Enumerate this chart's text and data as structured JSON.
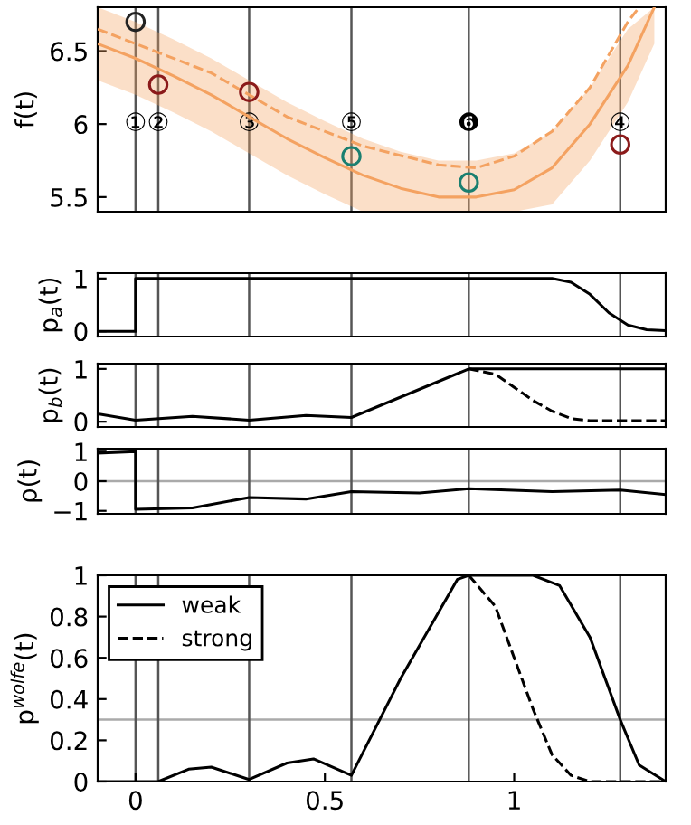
{
  "chart_data": [
    {
      "type": "line",
      "ylabel": "f(t)",
      "xlim": [
        -0.1,
        1.4
      ],
      "ylim": [
        5.4,
        6.8
      ],
      "yticks": [
        5.5,
        6,
        6.5
      ],
      "tick_labels": "y",
      "grid": false,
      "series": [
        {
          "color": "#f4a261",
          "line_style": "solid",
          "x": [
            -0.1,
            0,
            0.1,
            0.2,
            0.3,
            0.4,
            0.5,
            0.6,
            0.7,
            0.8,
            0.9,
            1.0,
            1.1,
            1.2,
            1.3,
            1.37
          ],
          "values": [
            6.55,
            6.45,
            6.33,
            6.2,
            6.05,
            5.9,
            5.77,
            5.65,
            5.56,
            5.5,
            5.5,
            5.55,
            5.7,
            6.0,
            6.4,
            6.8
          ],
          "lower": [
            6.3,
            6.2,
            6.08,
            5.95,
            5.8,
            5.65,
            5.52,
            5.4,
            5.4,
            5.4,
            5.4,
            5.4,
            5.45,
            5.75,
            6.15,
            6.55
          ],
          "upper": [
            6.8,
            6.7,
            6.58,
            6.45,
            6.3,
            6.15,
            6.02,
            5.9,
            5.81,
            5.75,
            5.75,
            5.8,
            5.95,
            6.25,
            6.65,
            6.8
          ]
        },
        {
          "color": "#f4a261",
          "line_style": "dashed",
          "x": [
            -0.1,
            0,
            0.2,
            0.4,
            0.6,
            0.8,
            0.9,
            1.0,
            1.1,
            1.2,
            1.3,
            1.33
          ],
          "values": [
            6.65,
            6.55,
            6.35,
            6.05,
            5.85,
            5.72,
            5.7,
            5.78,
            5.95,
            6.25,
            6.7,
            6.8
          ]
        },
        {
          "type": "scatter",
          "marker": "circle",
          "color": "#222222",
          "x": [
            0
          ],
          "values": [
            6.7
          ]
        },
        {
          "type": "scatter",
          "marker": "circle",
          "color": "#8b1a1a",
          "x": [
            0.06,
            0.3,
            1.28
          ],
          "values": [
            6.27,
            6.22,
            5.86
          ]
        },
        {
          "type": "scatter",
          "marker": "circle",
          "color": "#1a7f70",
          "x": [
            0.57,
            0.88
          ],
          "values": [
            5.78,
            5.6
          ]
        }
      ],
      "ref_lines": [
        {
          "axis": "x",
          "value": 0
        },
        {
          "axis": "x",
          "value": 0.06
        },
        {
          "axis": "x",
          "value": 0.3
        },
        {
          "axis": "x",
          "value": 0.57
        },
        {
          "axis": "x",
          "value": 0.88
        },
        {
          "axis": "x",
          "value": 1.28
        }
      ],
      "annotations": [
        {
          "text": "①",
          "x": 0,
          "y": 6
        },
        {
          "text": "②",
          "x": 0.06,
          "y": 6
        },
        {
          "text": "③",
          "x": 0.3,
          "y": 6
        },
        {
          "text": "⑤",
          "x": 0.57,
          "y": 6
        },
        {
          "text": "❻",
          "x": 0.88,
          "y": 6
        },
        {
          "text": "④",
          "x": 1.28,
          "y": 6
        }
      ]
    },
    {
      "type": "line",
      "ylabel": "p$_{a}$(t)",
      "xlim": [
        -0.1,
        1.4
      ],
      "ylim": [
        -0.1,
        1.1
      ],
      "yticks": [
        0,
        1
      ],
      "tick_labels": "y",
      "grid": false,
      "series": [
        {
          "color": "#000000",
          "line_style": "solid",
          "x": [
            -0.1,
            0,
            0,
            1.1,
            1.15,
            1.2,
            1.25,
            1.3,
            1.35,
            1.4
          ],
          "values": [
            0,
            0,
            1,
            1,
            0.93,
            0.7,
            0.35,
            0.12,
            0.03,
            0.01
          ]
        }
      ],
      "ref_lines": [
        {
          "axis": "x",
          "value": 0
        },
        {
          "axis": "x",
          "value": 0.06
        },
        {
          "axis": "x",
          "value": 0.3
        },
        {
          "axis": "x",
          "value": 0.57
        },
        {
          "axis": "x",
          "value": 0.88
        },
        {
          "axis": "x",
          "value": 1.28
        }
      ]
    },
    {
      "type": "line",
      "ylabel": "p$_{b}$(t)",
      "xlim": [
        -0.1,
        1.4
      ],
      "ylim": [
        -0.1,
        1.1
      ],
      "yticks": [
        0,
        1
      ],
      "tick_labels": "y",
      "grid": false,
      "series": [
        {
          "color": "#000000",
          "line_style": "solid",
          "x": [
            -0.1,
            0,
            0.15,
            0.3,
            0.45,
            0.57,
            0.88,
            1.4
          ],
          "values": [
            0.15,
            0.03,
            0.1,
            0.03,
            0.12,
            0.08,
            1,
            1
          ]
        },
        {
          "color": "#000000",
          "line_style": "dashed",
          "x": [
            0.88,
            0.95,
            1.0,
            1.05,
            1.1,
            1.15,
            1.2,
            1.4
          ],
          "values": [
            1,
            0.9,
            0.65,
            0.4,
            0.2,
            0.06,
            0.02,
            0.02
          ]
        }
      ],
      "ref_lines": [
        {
          "axis": "x",
          "value": 0
        },
        {
          "axis": "x",
          "value": 0.06
        },
        {
          "axis": "x",
          "value": 0.3
        },
        {
          "axis": "x",
          "value": 0.57
        },
        {
          "axis": "x",
          "value": 0.88
        },
        {
          "axis": "x",
          "value": 1.28
        }
      ]
    },
    {
      "type": "line",
      "ylabel": "ρ(t)",
      "xlim": [
        -0.1,
        1.4
      ],
      "ylim": [
        -1.1,
        1.1
      ],
      "yticks": [
        {
          "value": -1,
          "label": "−1"
        },
        0,
        1
      ],
      "tick_labels": "y",
      "grid": false,
      "series": [
        {
          "color": "#000000",
          "line_style": "solid",
          "x": [
            -0.1,
            0,
            0,
            0.15,
            0.3,
            0.45,
            0.57,
            0.75,
            0.88,
            1.1,
            1.28,
            1.4
          ],
          "values": [
            0.95,
            1,
            -0.95,
            -0.9,
            -0.55,
            -0.6,
            -0.35,
            -0.4,
            -0.25,
            -0.35,
            -0.3,
            -0.45
          ]
        }
      ],
      "ref_lines": [
        {
          "axis": "y",
          "value": 0,
          "color": "#aaaaaa"
        },
        {
          "axis": "x",
          "value": 0
        },
        {
          "axis": "x",
          "value": 0.06
        },
        {
          "axis": "x",
          "value": 0.3
        },
        {
          "axis": "x",
          "value": 0.57
        },
        {
          "axis": "x",
          "value": 0.88
        },
        {
          "axis": "x",
          "value": 1.28
        }
      ]
    },
    {
      "type": "line",
      "ylabel": "p$^{wolfe}$(t)",
      "xlim": [
        -0.1,
        1.4
      ],
      "ylim": [
        0,
        1
      ],
      "xticks": [
        0,
        0.5,
        1
      ],
      "yticks": [
        0,
        0.2,
        0.4,
        0.6,
        0.8,
        1
      ],
      "grid": false,
      "legend": "top left",
      "series": [
        {
          "name": "weak",
          "color": "#000000",
          "line_style": "solid",
          "x": [
            -0.1,
            0.06,
            0.14,
            0.2,
            0.3,
            0.4,
            0.47,
            0.57,
            0.7,
            0.85,
            0.88,
            1.05,
            1.12,
            1.2,
            1.28,
            1.33,
            1.4
          ],
          "values": [
            0,
            0,
            0.06,
            0.07,
            0.01,
            0.09,
            0.11,
            0.03,
            0.5,
            0.98,
            1,
            1,
            0.95,
            0.7,
            0.3,
            0.08,
            0
          ]
        },
        {
          "name": "strong",
          "color": "#000000",
          "line_style": "dashed",
          "x": [
            0.88,
            0.95,
            1.0,
            1.05,
            1.1,
            1.15,
            1.2,
            1.4
          ],
          "values": [
            1,
            0.85,
            0.6,
            0.35,
            0.13,
            0.03,
            0,
            0
          ]
        }
      ],
      "ref_lines": [
        {
          "axis": "y",
          "value": 0.3,
          "color": "#aaaaaa"
        },
        {
          "axis": "x",
          "value": 0
        },
        {
          "axis": "x",
          "value": 0.06
        },
        {
          "axis": "x",
          "value": 0.3
        },
        {
          "axis": "x",
          "value": 0.57
        },
        {
          "axis": "x",
          "value": 0.88
        },
        {
          "axis": "x",
          "value": 1.28
        }
      ]
    }
  ]
}
